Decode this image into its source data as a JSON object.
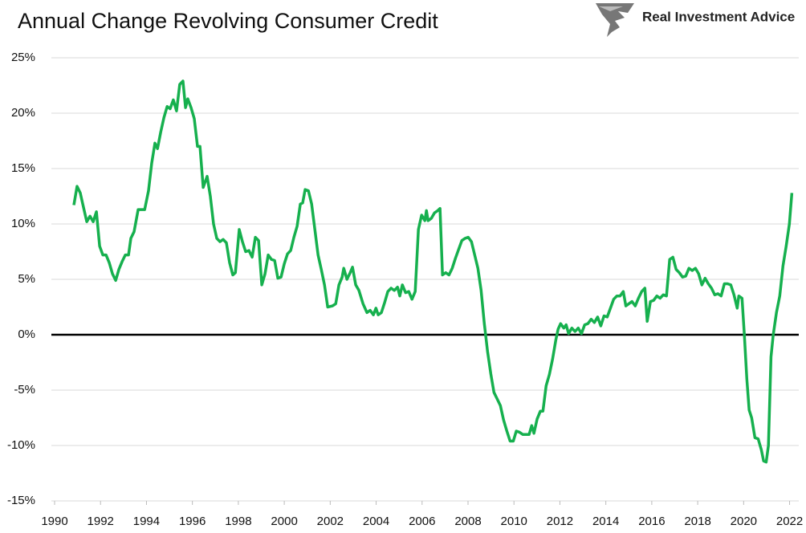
{
  "chart_data": {
    "type": "line",
    "title": "Annual Change Revolving Consumer Credit",
    "brand": "Real Investment Advice",
    "x": [
      1990.84,
      1990.98,
      1991.12,
      1991.26,
      1991.4,
      1991.54,
      1991.68,
      1991.82,
      1991.96,
      1992.1,
      1992.24,
      1992.38,
      1992.52,
      1992.66,
      1992.8,
      1992.94,
      1993.08,
      1993.22,
      1993.32,
      1993.46,
      1993.64,
      1993.92,
      1994.09,
      1994.23,
      1994.37,
      1994.48,
      1994.62,
      1994.76,
      1994.9,
      1995.03,
      1995.17,
      1995.31,
      1995.45,
      1995.59,
      1995.7,
      1995.8,
      1995.94,
      1996.08,
      1996.22,
      1996.33,
      1996.47,
      1996.64,
      1996.78,
      1996.92,
      1997.06,
      1997.2,
      1997.34,
      1997.48,
      1997.62,
      1997.76,
      1997.87,
      1998.04,
      1998.18,
      1998.32,
      1998.46,
      1998.6,
      1998.74,
      1998.88,
      1999.02,
      1999.16,
      1999.3,
      1999.44,
      1999.58,
      1999.72,
      1999.86,
      2000.0,
      2000.14,
      2000.28,
      2000.42,
      2000.56,
      2000.7,
      2000.8,
      2000.91,
      2001.05,
      2001.19,
      2001.33,
      2001.47,
      2001.61,
      2001.75,
      2001.89,
      2002.1,
      2002.24,
      2002.38,
      2002.52,
      2002.59,
      2002.73,
      2002.87,
      2002.97,
      2003.11,
      2003.25,
      2003.43,
      2003.6,
      2003.74,
      2003.88,
      2003.99,
      2004.09,
      2004.23,
      2004.37,
      2004.51,
      2004.65,
      2004.79,
      2004.93,
      2005.03,
      2005.14,
      2005.28,
      2005.42,
      2005.56,
      2005.7,
      2005.84,
      2005.98,
      2006.12,
      2006.19,
      2006.26,
      2006.4,
      2006.54,
      2006.68,
      2006.78,
      2006.89,
      2007.03,
      2007.17,
      2007.31,
      2007.45,
      2007.59,
      2007.73,
      2007.87,
      2008.01,
      2008.15,
      2008.29,
      2008.43,
      2008.57,
      2008.71,
      2008.85,
      2008.99,
      2009.13,
      2009.27,
      2009.41,
      2009.55,
      2009.69,
      2009.83,
      2009.97,
      2010.1,
      2010.24,
      2010.38,
      2010.52,
      2010.66,
      2010.77,
      2010.87,
      2011.01,
      2011.15,
      2011.26,
      2011.4,
      2011.54,
      2011.68,
      2011.82,
      2011.92,
      2012.03,
      2012.17,
      2012.27,
      2012.38,
      2012.52,
      2012.66,
      2012.8,
      2012.94,
      2013.08,
      2013.22,
      2013.36,
      2013.5,
      2013.64,
      2013.78,
      2013.92,
      2014.06,
      2014.2,
      2014.34,
      2014.48,
      2014.62,
      2014.76,
      2014.87,
      2015.0,
      2015.14,
      2015.28,
      2015.42,
      2015.56,
      2015.7,
      2015.8,
      2015.94,
      2016.08,
      2016.22,
      2016.36,
      2016.5,
      2016.64,
      2016.78,
      2016.92,
      2017.06,
      2017.2,
      2017.34,
      2017.48,
      2017.62,
      2017.76,
      2017.9,
      2018.04,
      2018.18,
      2018.32,
      2018.46,
      2018.6,
      2018.74,
      2018.88,
      2019.02,
      2019.16,
      2019.3,
      2019.44,
      2019.58,
      2019.72,
      2019.79,
      2019.93,
      2020.03,
      2020.14,
      2020.24,
      2020.35,
      2020.49,
      2020.63,
      2020.77,
      2020.87,
      2020.98,
      2021.08,
      2021.19,
      2021.29,
      2021.43,
      2021.57,
      2021.71,
      2021.85,
      2021.99,
      2022.1
    ],
    "series": [
      {
        "color": "#16b04e",
        "values": [
          11.7,
          13.4,
          12.8,
          11.5,
          10.2,
          10.7,
          10.2,
          11.1,
          8.0,
          7.2,
          7.2,
          6.5,
          5.5,
          4.9,
          5.9,
          6.6,
          7.2,
          7.2,
          8.7,
          9.3,
          11.3,
          11.3,
          13.0,
          15.5,
          17.3,
          16.8,
          18.3,
          19.6,
          20.6,
          20.4,
          21.2,
          20.2,
          22.6,
          22.9,
          20.5,
          21.3,
          20.5,
          19.5,
          17.0,
          17.0,
          13.3,
          14.3,
          12.5,
          10.0,
          8.7,
          8.4,
          8.6,
          8.3,
          6.5,
          5.4,
          5.6,
          9.5,
          8.4,
          7.5,
          7.6,
          7.0,
          8.8,
          8.5,
          4.5,
          5.5,
          7.2,
          6.8,
          6.7,
          5.1,
          5.2,
          6.4,
          7.3,
          7.6,
          8.8,
          9.8,
          11.8,
          11.9,
          13.1,
          13.0,
          11.8,
          9.5,
          7.2,
          5.9,
          4.5,
          2.5,
          2.6,
          2.8,
          4.5,
          5.2,
          6.0,
          5.0,
          5.6,
          6.1,
          4.5,
          4.0,
          2.8,
          2.0,
          2.2,
          1.8,
          2.4,
          1.8,
          2.0,
          2.9,
          3.9,
          4.2,
          4.0,
          4.3,
          3.5,
          4.5,
          3.8,
          3.9,
          3.2,
          3.9,
          9.5,
          10.8,
          10.3,
          11.2,
          10.3,
          10.5,
          11.0,
          11.2,
          11.4,
          5.4,
          5.6,
          5.4,
          6.0,
          6.9,
          7.7,
          8.5,
          8.7,
          8.8,
          8.4,
          7.2,
          6.0,
          4.0,
          1.0,
          -1.5,
          -3.5,
          -5.2,
          -5.8,
          -6.4,
          -7.7,
          -8.7,
          -9.6,
          -9.6,
          -8.7,
          -8.8,
          -9.0,
          -9.0,
          -9.0,
          -8.2,
          -8.9,
          -7.6,
          -6.9,
          -6.9,
          -4.6,
          -3.6,
          -2.2,
          -0.5,
          0.5,
          1.0,
          0.6,
          0.9,
          0.1,
          0.6,
          0.3,
          0.6,
          0.1,
          0.9,
          1.0,
          1.4,
          1.1,
          1.6,
          0.8,
          1.7,
          1.6,
          2.4,
          3.2,
          3.5,
          3.5,
          3.9,
          2.6,
          2.8,
          3.0,
          2.6,
          3.3,
          3.9,
          4.2,
          1.2,
          3.0,
          3.1,
          3.5,
          3.3,
          3.6,
          3.5,
          6.8,
          7.0,
          5.9,
          5.6,
          5.2,
          5.3,
          6.0,
          5.8,
          6.0,
          5.5,
          4.5,
          5.1,
          4.6,
          4.2,
          3.6,
          3.7,
          3.5,
          4.6,
          4.6,
          4.5,
          3.6,
          2.4,
          3.5,
          3.3,
          0.0,
          -4.0,
          -6.8,
          -7.5,
          -9.3,
          -9.4,
          -10.4,
          -11.4,
          -11.5,
          -10.0,
          -2.0,
          0.0,
          2.0,
          3.5,
          6.2,
          8.0,
          10.0,
          12.8
        ]
      }
    ],
    "xlim": [
      1990,
      2022.4
    ],
    "xticks": [
      1990,
      1992,
      1994,
      1996,
      1998,
      2000,
      2002,
      2004,
      2006,
      2008,
      2010,
      2012,
      2014,
      2016,
      2018,
      2020,
      2022
    ],
    "ylim": [
      -15,
      25
    ],
    "yticks": [
      {
        "value": -15,
        "label": "-15%"
      },
      {
        "value": -10,
        "label": "-10%"
      },
      {
        "value": -5,
        "label": "-5%"
      },
      {
        "value": 0,
        "label": "0%"
      },
      {
        "value": 5,
        "label": "5%"
      },
      {
        "value": 10,
        "label": "10%"
      },
      {
        "value": 15,
        "label": "15%"
      },
      {
        "value": 20,
        "label": "20%"
      },
      {
        "value": 25,
        "label": "25%"
      }
    ],
    "grid": true,
    "zero_line": true
  }
}
